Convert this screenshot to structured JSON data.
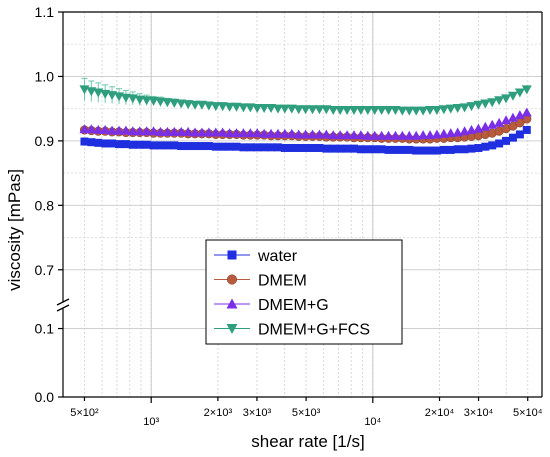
{
  "chart_data": {
    "type": "scatter",
    "xlabel": "shear rate [1/s]",
    "ylabel": "viscosity [mPas]",
    "xscale": "log",
    "xlim": [
      400,
      58000
    ],
    "ylim_upper": [
      0.65,
      1.1
    ],
    "ylim_lower": [
      0.0,
      0.13
    ],
    "axis_break": true,
    "grid": true,
    "legend_position": "lower-center",
    "x_ticks": [
      {
        "value": 500,
        "label": "5×10²"
      },
      {
        "value": 1000,
        "label": "10³"
      },
      {
        "value": 2000,
        "label": "2×10³"
      },
      {
        "value": 3000,
        "label": "3×10³"
      },
      {
        "value": 5000,
        "label": "5×10³"
      },
      {
        "value": 10000,
        "label": "10⁴"
      },
      {
        "value": 20000,
        "label": "2×10⁴"
      },
      {
        "value": 30000,
        "label": "3×10⁴"
      },
      {
        "value": 50000,
        "label": "5×10⁴"
      }
    ],
    "y_ticks_upper": [
      {
        "value": 0.7,
        "label": "0.7"
      },
      {
        "value": 0.8,
        "label": "0.8"
      },
      {
        "value": 0.9,
        "label": "0.9"
      },
      {
        "value": 1.0,
        "label": "1.0"
      },
      {
        "value": 1.1,
        "label": "1.1"
      }
    ],
    "y_ticks_lower": [
      {
        "value": 0.0,
        "label": "0.0"
      },
      {
        "value": 0.1,
        "label": "0.1"
      }
    ],
    "x": [
      500,
      537,
      577,
      620,
      666,
      716,
      769,
      826,
      888,
      954,
      1025,
      1101,
      1183,
      1271,
      1366,
      1468,
      1577,
      1694,
      1820,
      1956,
      2101,
      2258,
      2426,
      2607,
      2801,
      3009,
      3233,
      3474,
      3733,
      4010,
      4309,
      4630,
      4974,
      5345,
      5742,
      6170,
      6629,
      7123,
      7653,
      8223,
      8835,
      9493,
      10200,
      10960,
      11776,
      12653,
      13595,
      14607,
      15695,
      16863,
      18119,
      19468,
      20918,
      22475,
      24148,
      25947,
      27878,
      29954,
      32185,
      34581,
      37156,
      39922,
      42895,
      46088,
      49520
    ],
    "series": [
      {
        "name": "water",
        "marker": "square",
        "color": "#1f2fe0",
        "values": [
          0.899,
          0.898,
          0.897,
          0.896,
          0.896,
          0.895,
          0.895,
          0.894,
          0.894,
          0.894,
          0.893,
          0.893,
          0.893,
          0.893,
          0.892,
          0.892,
          0.892,
          0.892,
          0.892,
          0.891,
          0.891,
          0.891,
          0.891,
          0.89,
          0.89,
          0.89,
          0.89,
          0.89,
          0.89,
          0.889,
          0.889,
          0.889,
          0.889,
          0.889,
          0.889,
          0.888,
          0.888,
          0.888,
          0.888,
          0.888,
          0.887,
          0.887,
          0.887,
          0.887,
          0.886,
          0.886,
          0.886,
          0.886,
          0.885,
          0.885,
          0.885,
          0.885,
          0.886,
          0.886,
          0.887,
          0.887,
          0.888,
          0.889,
          0.891,
          0.893,
          0.896,
          0.9,
          0.905,
          0.91,
          0.917
        ]
      },
      {
        "name": "DMEM",
        "marker": "circle",
        "color": "#b85a3c",
        "values": [
          0.917,
          0.916,
          0.915,
          0.915,
          0.914,
          0.914,
          0.913,
          0.913,
          0.913,
          0.913,
          0.912,
          0.912,
          0.912,
          0.912,
          0.912,
          0.911,
          0.911,
          0.911,
          0.911,
          0.91,
          0.91,
          0.91,
          0.91,
          0.909,
          0.909,
          0.909,
          0.909,
          0.908,
          0.908,
          0.908,
          0.908,
          0.907,
          0.907,
          0.907,
          0.907,
          0.906,
          0.906,
          0.906,
          0.906,
          0.905,
          0.905,
          0.905,
          0.905,
          0.904,
          0.904,
          0.904,
          0.904,
          0.903,
          0.903,
          0.903,
          0.903,
          0.904,
          0.904,
          0.905,
          0.905,
          0.906,
          0.907,
          0.908,
          0.91,
          0.912,
          0.915,
          0.919,
          0.923,
          0.928,
          0.934
        ]
      },
      {
        "name": "DMEM+G",
        "marker": "triangle-up",
        "color": "#7a2fe6",
        "values": [
          0.918,
          0.918,
          0.917,
          0.917,
          0.916,
          0.916,
          0.916,
          0.915,
          0.915,
          0.915,
          0.915,
          0.914,
          0.914,
          0.914,
          0.914,
          0.914,
          0.913,
          0.913,
          0.913,
          0.913,
          0.913,
          0.912,
          0.912,
          0.912,
          0.912,
          0.912,
          0.911,
          0.911,
          0.911,
          0.911,
          0.911,
          0.91,
          0.91,
          0.91,
          0.91,
          0.91,
          0.909,
          0.909,
          0.909,
          0.909,
          0.909,
          0.908,
          0.908,
          0.908,
          0.908,
          0.908,
          0.908,
          0.908,
          0.908,
          0.909,
          0.909,
          0.91,
          0.911,
          0.912,
          0.913,
          0.915,
          0.917,
          0.919,
          0.922,
          0.925,
          0.928,
          0.932,
          0.936,
          0.94,
          0.944
        ]
      },
      {
        "name": "DMEM+G+FCS",
        "marker": "triangle-down",
        "color": "#2e9e7e",
        "values": [
          0.98,
          0.977,
          0.975,
          0.973,
          0.971,
          0.969,
          0.967,
          0.966,
          0.964,
          0.963,
          0.962,
          0.961,
          0.96,
          0.959,
          0.958,
          0.957,
          0.956,
          0.956,
          0.955,
          0.954,
          0.954,
          0.953,
          0.953,
          0.952,
          0.952,
          0.951,
          0.951,
          0.951,
          0.95,
          0.95,
          0.95,
          0.949,
          0.949,
          0.949,
          0.949,
          0.949,
          0.948,
          0.948,
          0.948,
          0.948,
          0.948,
          0.948,
          0.948,
          0.948,
          0.948,
          0.948,
          0.947,
          0.947,
          0.947,
          0.947,
          0.948,
          0.948,
          0.949,
          0.95,
          0.951,
          0.952,
          0.954,
          0.956,
          0.958,
          0.96,
          0.963,
          0.966,
          0.97,
          0.975,
          0.98
        ],
        "error": [
          0.017,
          0.016,
          0.015,
          0.014,
          0.013,
          0.012,
          0.011,
          0.01,
          0.009,
          0.008,
          0.007,
          0.007,
          0.006,
          0.006,
          0.005,
          0.005,
          0.004,
          0.004,
          0.004,
          0.003,
          0.003,
          0.003,
          0.003,
          0.003,
          0.002,
          0.002,
          0.002,
          0.002,
          0.002,
          0.002,
          0.002,
          0.002,
          0.002,
          0.002,
          0.002,
          0.002,
          0.002,
          0.002,
          0.002,
          0.002,
          0.002,
          0.002,
          0.002,
          0.002,
          0.002,
          0.002,
          0.002,
          0.002,
          0.002,
          0.002,
          0.002,
          0.002,
          0.002,
          0.002,
          0.002,
          0.002,
          0.002,
          0.002,
          0.002,
          0.002,
          0.002,
          0.002,
          0.002,
          0.002,
          0.002
        ]
      }
    ]
  }
}
